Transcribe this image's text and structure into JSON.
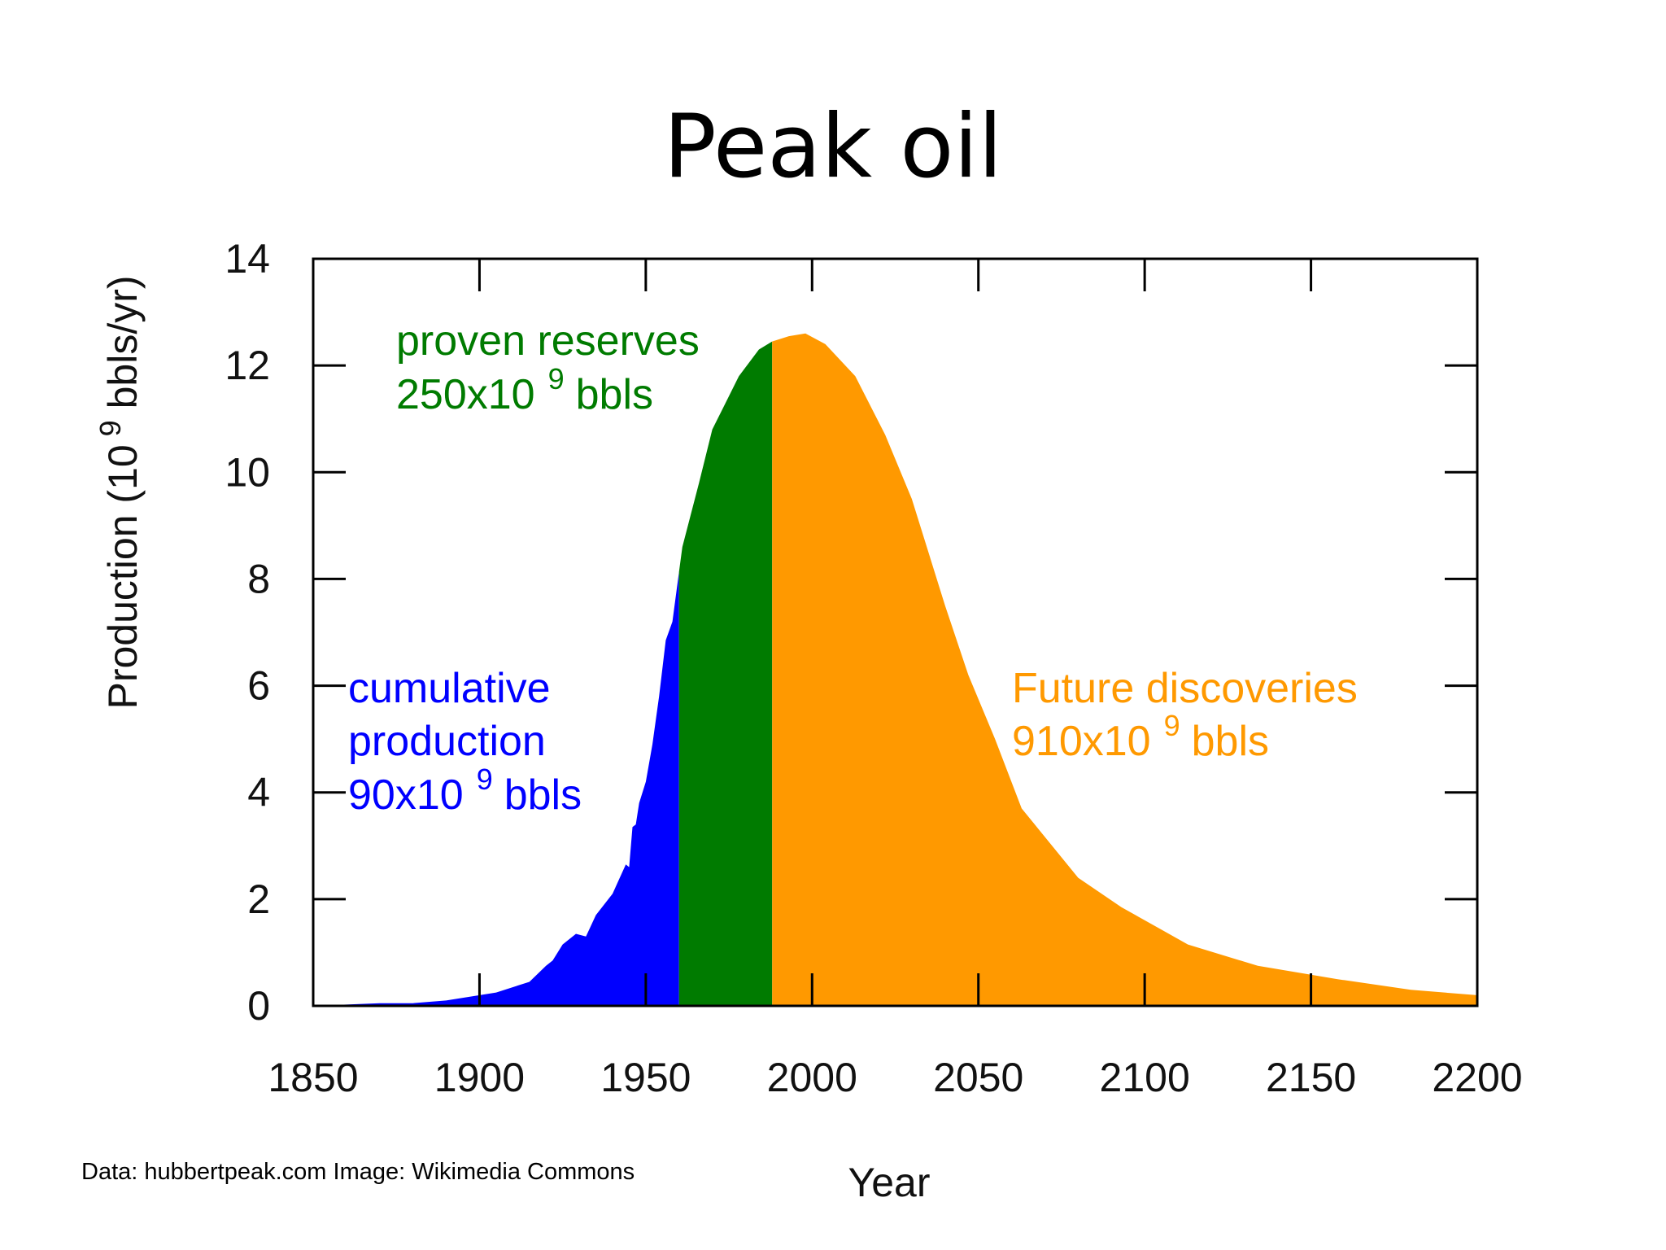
{
  "slide": {
    "title": "Peak oil",
    "credit": "Data: hubbertpeak.com Image: Wikimedia Commons"
  },
  "colors": {
    "cumulative": "#0000ff",
    "proven": "#007b00",
    "future": "#ff9900",
    "axis": "#000000"
  },
  "chart_data": {
    "type": "area",
    "title": "",
    "xlabel": "Year",
    "ylabel_main": "Production (10",
    "ylabel_sup": "9",
    "ylabel_tail": " bbls/yr)",
    "xlim": [
      1850,
      2200
    ],
    "ylim": [
      0,
      14
    ],
    "x_ticks": [
      1850,
      1900,
      1950,
      2000,
      2050,
      2100,
      2150,
      2200
    ],
    "y_ticks": [
      0,
      2,
      4,
      6,
      8,
      10,
      12,
      14
    ],
    "grid": false,
    "curve": [
      [
        1850,
        0.0
      ],
      [
        1870,
        0.05
      ],
      [
        1880,
        0.05
      ],
      [
        1890,
        0.1
      ],
      [
        1900,
        0.2
      ],
      [
        1905,
        0.25
      ],
      [
        1915,
        0.45
      ],
      [
        1920,
        0.75
      ],
      [
        1922,
        0.85
      ],
      [
        1925,
        1.15
      ],
      [
        1929,
        1.35
      ],
      [
        1932,
        1.3
      ],
      [
        1935,
        1.7
      ],
      [
        1940,
        2.1
      ],
      [
        1944,
        2.65
      ],
      [
        1945,
        2.6
      ],
      [
        1946,
        3.35
      ],
      [
        1947,
        3.4
      ],
      [
        1948,
        3.8
      ],
      [
        1950,
        4.2
      ],
      [
        1952,
        4.9
      ],
      [
        1954,
        5.8
      ],
      [
        1956,
        6.85
      ],
      [
        1958,
        7.2
      ],
      [
        1961,
        8.6
      ],
      [
        1966,
        9.8
      ],
      [
        1970,
        10.8
      ],
      [
        1978,
        11.8
      ],
      [
        1984,
        12.3
      ],
      [
        1988,
        12.45
      ],
      [
        1993,
        12.55
      ],
      [
        1998,
        12.6
      ],
      [
        2004,
        12.4
      ],
      [
        2013,
        11.8
      ],
      [
        2022,
        10.7
      ],
      [
        2030,
        9.5
      ],
      [
        2040,
        7.5
      ],
      [
        2047,
        6.2
      ],
      [
        2055,
        5.0
      ],
      [
        2063,
        3.7
      ],
      [
        2080,
        2.4
      ],
      [
        2093,
        1.85
      ],
      [
        2113,
        1.15
      ],
      [
        2134,
        0.75
      ],
      [
        2158,
        0.5
      ],
      [
        2180,
        0.3
      ],
      [
        2200,
        0.2
      ]
    ],
    "series": [
      {
        "name": "cumulative production",
        "x_range": [
          1850,
          1960
        ]
      },
      {
        "name": "proven reserves",
        "x_range": [
          1960,
          1988
        ]
      },
      {
        "name": "Future discoveries",
        "x_range": [
          1988,
          2200
        ]
      }
    ],
    "annotations": {
      "proven": {
        "line1": "proven reserves",
        "line2_a": "250x10",
        "sup": "9",
        "line2_b": "bbls"
      },
      "cumulative": {
        "line1": "cumulative",
        "line2": "production",
        "line3_a": "90x10",
        "sup": "9",
        "line3_b": "bbls"
      },
      "future": {
        "line1": "Future discoveries",
        "line2_a": "910x10",
        "sup": "9",
        "line2_b": "bbls"
      }
    }
  }
}
